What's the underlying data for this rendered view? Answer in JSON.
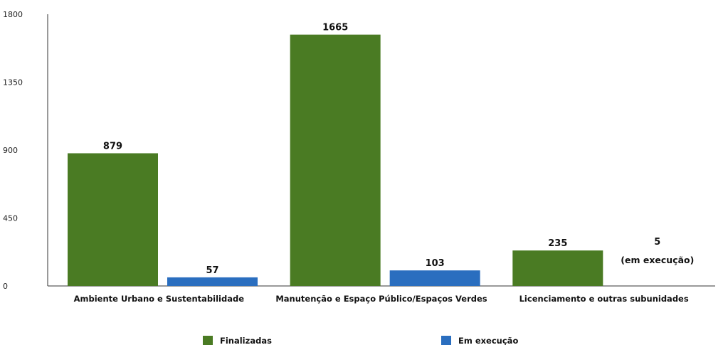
{
  "chart_data": {
    "type": "bar",
    "categories": [
      "Ambiente Urbano e Sustentabilidade",
      "Manutenção e Espaço Público/Espaços Verdes",
      "Licenciamento e outras subunidades"
    ],
    "series": [
      {
        "name": "Finalizadas",
        "values": [
          879,
          1665,
          235
        ],
        "color": "#4a7b23"
      },
      {
        "name": "Em execução",
        "values": [
          57,
          103,
          5
        ],
        "color": "#2a6ebf"
      }
    ],
    "yticks": [
      0,
      450,
      900,
      1350,
      1800
    ],
    "ylim": [
      0,
      1800
    ],
    "grid": false,
    "legend_position": "bottom",
    "annotations": [
      {
        "category": "Licenciamento e outras subunidades",
        "series": "Em execução",
        "value_text": "5",
        "text": "(em execução)"
      }
    ]
  }
}
